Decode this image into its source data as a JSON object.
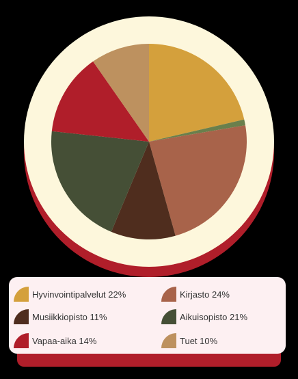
{
  "chart_data": {
    "type": "pie",
    "slices": [
      {
        "label": "Hyvinvointipalvelut 22%",
        "value": 22,
        "color": "#d4a03c"
      },
      {
        "label": "",
        "value": 1,
        "color": "#6a7f4c"
      },
      {
        "label": "Kirjasto 24%",
        "value": 24,
        "color": "#a8634a"
      },
      {
        "label": "Musiikkiopisto 11%",
        "value": 11,
        "color": "#4f2d1e"
      },
      {
        "label": "Aikuisopisto 21%",
        "value": 21,
        "color": "#454f36"
      },
      {
        "label": "Vapaa-aika 14%",
        "value": 14,
        "color": "#b01e2a"
      },
      {
        "label": "Tuet 10%",
        "value": 10,
        "color": "#bd915f"
      }
    ],
    "legend": {
      "placement": "bottom",
      "items": [
        {
          "label": "Hyvinvointipalvelut 22%",
          "color": "#d4a03c"
        },
        {
          "label": "Kirjasto 24%",
          "color": "#a8634a"
        },
        {
          "label": "Musiikkiopisto 11%",
          "color": "#4f2d1e"
        },
        {
          "label": "Aikuisopisto 21%",
          "color": "#454f36"
        },
        {
          "label": "Vapaa-aika 14%",
          "color": "#b01e2a"
        },
        {
          "label": "Tuet 10%",
          "color": "#bd915f"
        }
      ]
    }
  },
  "colors": {
    "background": "#000000",
    "pie_border": "#fdf7dc",
    "pie_shadow": "#b01e2a",
    "legend_background": "#fdf0f2",
    "legend_shadow": "#b01e2a"
  }
}
